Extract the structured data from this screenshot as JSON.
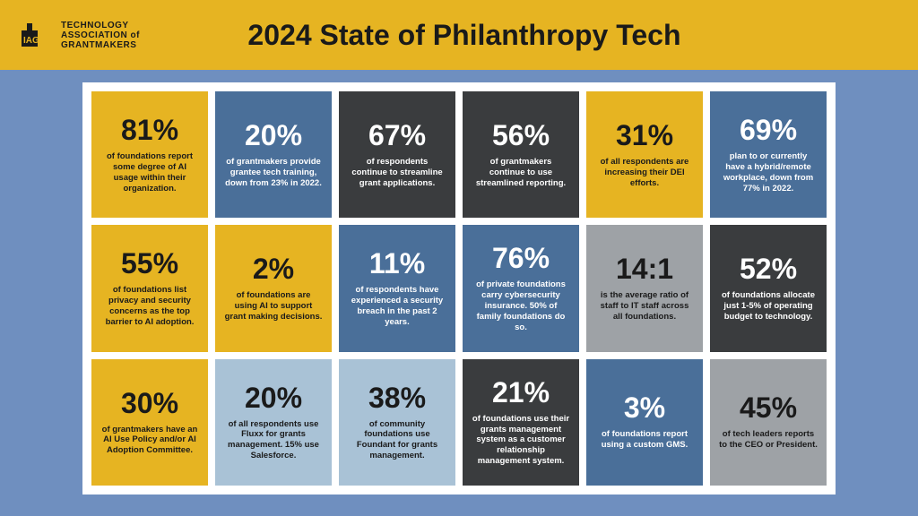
{
  "header": {
    "logo_line1": "TECHNOLOGY",
    "logo_line2": "ASSOCIATION of",
    "logo_line3": "GRANTMAKERS",
    "title": "2024 State of Philanthropy Tech",
    "bg": "#e6b422",
    "fg": "#1a1a1a"
  },
  "page": {
    "bg": "#6f8fbf",
    "panel_bg": "#ffffff"
  },
  "palette": {
    "gold": "#e6b422",
    "blue": "#4a6f99",
    "dark": "#3a3c3e",
    "grey": "#9ea2a6",
    "lightblue": "#a9c2d6",
    "black_text": "#1a1a1a",
    "white_text": "#ffffff"
  },
  "tiles": [
    {
      "stat": "81%",
      "desc": "of foundations report some degree of AI usage within their organization.",
      "bg": "#e6b422",
      "fg": "#1a1a1a"
    },
    {
      "stat": "20%",
      "desc": "of grantmakers provide grantee tech training, down from 23% in 2022.",
      "bg": "#4a6f99",
      "fg": "#ffffff"
    },
    {
      "stat": "67%",
      "desc": "of respondents continue to streamline grant applications.",
      "bg": "#3a3c3e",
      "fg": "#ffffff"
    },
    {
      "stat": "56%",
      "desc": "of grantmakers continue to use streamlined reporting.",
      "bg": "#3a3c3e",
      "fg": "#ffffff"
    },
    {
      "stat": "31%",
      "desc": "of all respondents are increasing their DEI efforts.",
      "bg": "#e6b422",
      "fg": "#1a1a1a"
    },
    {
      "stat": "69%",
      "desc": "plan to or currently have a hybrid/remote workplace, down from 77% in 2022.",
      "bg": "#4a6f99",
      "fg": "#ffffff"
    },
    {
      "stat": "55%",
      "desc": "of foundations list privacy and security concerns as the top barrier to AI adoption.",
      "bg": "#e6b422",
      "fg": "#1a1a1a"
    },
    {
      "stat": "2%",
      "desc": "of foundations are using AI to support grant making decisions.",
      "bg": "#e6b422",
      "fg": "#1a1a1a"
    },
    {
      "stat": "11%",
      "desc": "of respondents have experienced a security breach in the past 2 years.",
      "bg": "#4a6f99",
      "fg": "#ffffff"
    },
    {
      "stat": "76%",
      "desc": "of private foundations carry cybersecurity insurance. 50% of family foundations do so.",
      "bg": "#4a6f99",
      "fg": "#ffffff"
    },
    {
      "stat": "14:1",
      "desc": "is the average ratio of staff to IT staff across all foundations.",
      "bg": "#9ea2a6",
      "fg": "#1a1a1a"
    },
    {
      "stat": "52%",
      "desc": "of foundations allocate just 1-5% of operating budget to technology.",
      "bg": "#3a3c3e",
      "fg": "#ffffff"
    },
    {
      "stat": "30%",
      "desc": "of grantmakers have an AI Use Policy and/or AI Adoption Committee.",
      "bg": "#e6b422",
      "fg": "#1a1a1a"
    },
    {
      "stat": "20%",
      "desc": "of all respondents use Fluxx for grants management. 15% use Salesforce.",
      "bg": "#a9c2d6",
      "fg": "#1a1a1a"
    },
    {
      "stat": "38%",
      "desc": "of community foundations use Foundant for grants management.",
      "bg": "#a9c2d6",
      "fg": "#1a1a1a"
    },
    {
      "stat": "21%",
      "desc": "of foundations use their grants management system as a customer relationship management system.",
      "bg": "#3a3c3e",
      "fg": "#ffffff"
    },
    {
      "stat": "3%",
      "desc": "of foundations report using a custom GMS.",
      "bg": "#4a6f99",
      "fg": "#ffffff"
    },
    {
      "stat": "45%",
      "desc": "of tech leaders reports to the CEO or President.",
      "bg": "#9ea2a6",
      "fg": "#1a1a1a"
    }
  ]
}
